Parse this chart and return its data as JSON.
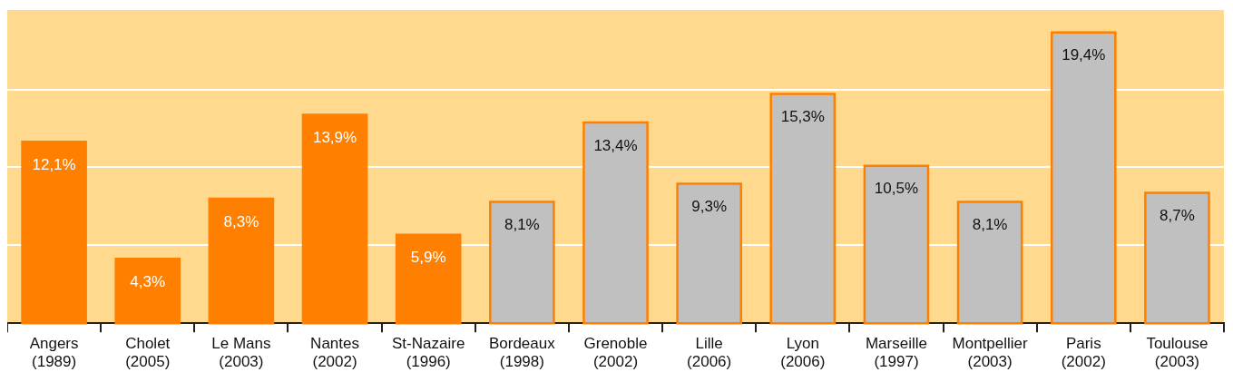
{
  "chart_data": {
    "type": "bar",
    "categories": [
      "Angers (1989)",
      "Cholet (2005)",
      "Le Mans (2003)",
      "Nantes (2002)",
      "St-Nazaire (1996)",
      "Bordeaux (1998)",
      "Grenoble (2002)",
      "Lille (2006)",
      "Lyon (2006)",
      "Marseille (1997)",
      "Montpellier (2003)",
      "Paris (2002)",
      "Toulouse (2003)"
    ],
    "series": [
      {
        "color": "#ff8000",
        "colors": [
          "#ff8000",
          "#ff8000",
          "#ff8000",
          "#ff8000",
          "#ff8000",
          "#c0c0c0",
          "#c0c0c0",
          "#c0c0c0",
          "#c0c0c0",
          "#c0c0c0",
          "#c0c0c0",
          "#c0c0c0",
          "#c0c0c0"
        ],
        "values": [
          12.1,
          4.3,
          8.3,
          13.9,
          5.9,
          8.1,
          13.4,
          9.3,
          15.3,
          10.5,
          8.1,
          19.4,
          8.7
        ],
        "value_labels": [
          "12,1%",
          "4,3%",
          "8,3%",
          "13,9%",
          "5,9%",
          "8,1%",
          "13,4%",
          "9,3%",
          "15,3%",
          "10,5%",
          "8,1%",
          "19,4%",
          "8,7%"
        ]
      }
    ],
    "ylim": [
      0,
      20.9
    ],
    "yticks": [
      {
        "value": 5.2,
        "label": null
      },
      {
        "value": 10.4,
        "label": null
      },
      {
        "value": 15.6,
        "label": null
      }
    ],
    "grid": "y",
    "tick_labels": "x",
    "legend": false
  }
}
